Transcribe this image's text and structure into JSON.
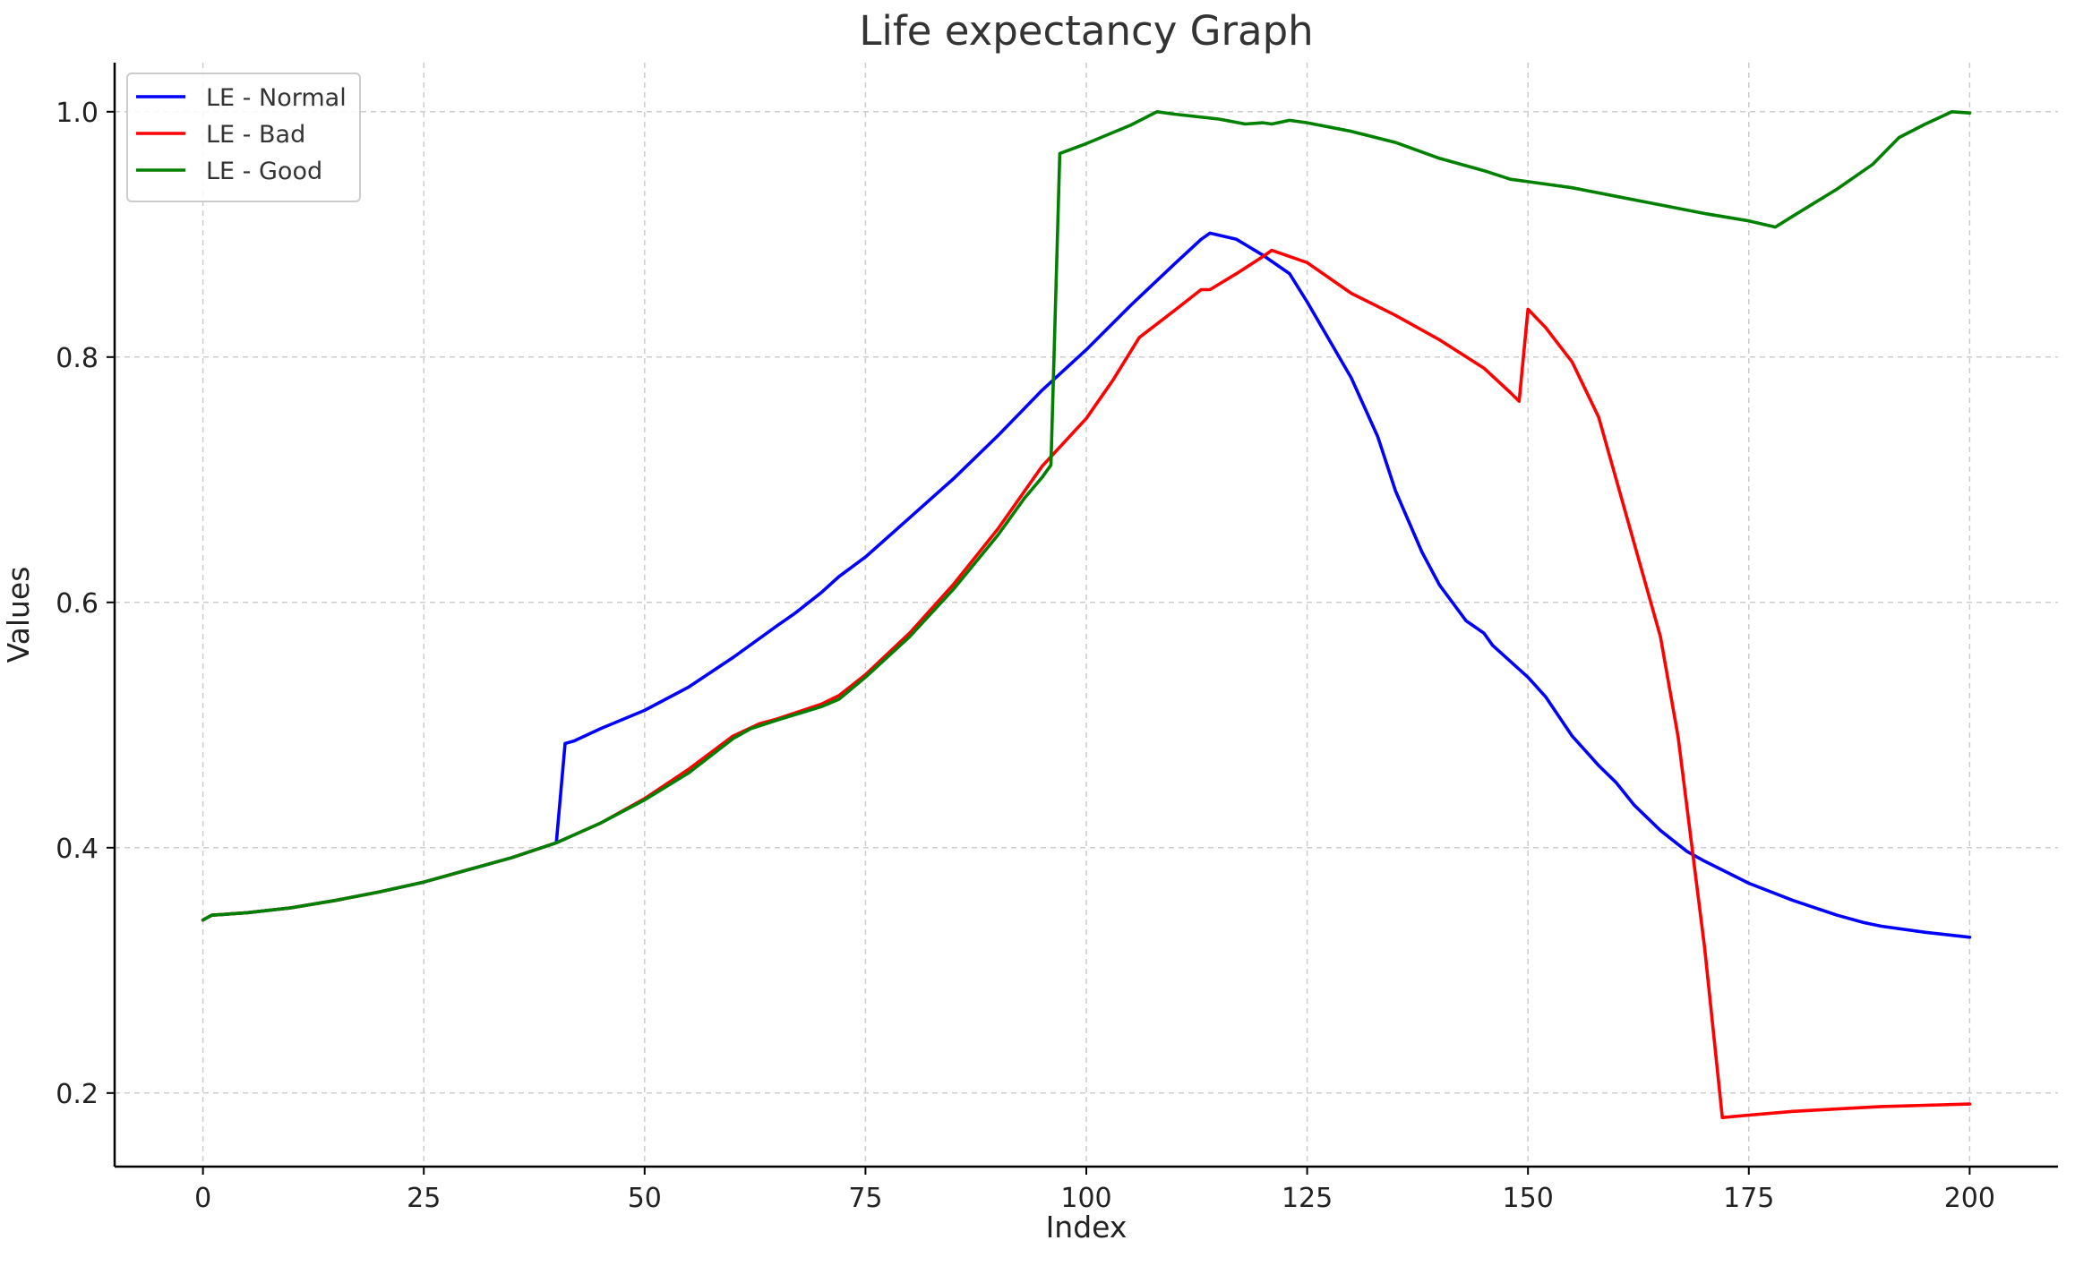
{
  "chart_data": {
    "type": "line",
    "title": "Life expectancy Graph",
    "xlabel": "Index",
    "ylabel": "Values",
    "xlim": [
      -10,
      210
    ],
    "ylim": [
      0.14,
      1.04
    ],
    "xticks": [
      0,
      25,
      50,
      75,
      100,
      125,
      150,
      175,
      200
    ],
    "xtick_labels": [
      "0",
      "25",
      "50",
      "75",
      "100",
      "125",
      "150",
      "175",
      "200"
    ],
    "yticks": [
      0.2,
      0.4,
      0.6,
      0.8,
      1.0
    ],
    "ytick_labels": [
      "0.2",
      "0.4",
      "0.6",
      "0.8",
      "1.0"
    ],
    "grid": true,
    "legend_position": "top-left",
    "series": [
      {
        "name": "LE - Normal",
        "color": "#0000ff",
        "points": [
          [
            0,
            0.341
          ],
          [
            1,
            0.345
          ],
          [
            5,
            0.347
          ],
          [
            10,
            0.351
          ],
          [
            15,
            0.357
          ],
          [
            20,
            0.364
          ],
          [
            25,
            0.372
          ],
          [
            30,
            0.382
          ],
          [
            35,
            0.392
          ],
          [
            40,
            0.404
          ],
          [
            41,
            0.485
          ],
          [
            42,
            0.487
          ],
          [
            45,
            0.497
          ],
          [
            50,
            0.512
          ],
          [
            55,
            0.531
          ],
          [
            60,
            0.555
          ],
          [
            65,
            0.581
          ],
          [
            67,
            0.591
          ],
          [
            70,
            0.608
          ],
          [
            72,
            0.621
          ],
          [
            75,
            0.637
          ],
          [
            80,
            0.669
          ],
          [
            85,
            0.701
          ],
          [
            90,
            0.736
          ],
          [
            95,
            0.773
          ],
          [
            100,
            0.806
          ],
          [
            105,
            0.842
          ],
          [
            110,
            0.876
          ],
          [
            113,
            0.896
          ],
          [
            114,
            0.901
          ],
          [
            117,
            0.896
          ],
          [
            120,
            0.883
          ],
          [
            123,
            0.868
          ],
          [
            125,
            0.845
          ],
          [
            130,
            0.783
          ],
          [
            133,
            0.735
          ],
          [
            135,
            0.691
          ],
          [
            138,
            0.641
          ],
          [
            140,
            0.614
          ],
          [
            143,
            0.585
          ],
          [
            145,
            0.575
          ],
          [
            146,
            0.565
          ],
          [
            150,
            0.539
          ],
          [
            152,
            0.523
          ],
          [
            155,
            0.491
          ],
          [
            158,
            0.467
          ],
          [
            160,
            0.453
          ],
          [
            162,
            0.435
          ],
          [
            165,
            0.414
          ],
          [
            168,
            0.397
          ],
          [
            170,
            0.389
          ],
          [
            175,
            0.371
          ],
          [
            180,
            0.357
          ],
          [
            185,
            0.345
          ],
          [
            188,
            0.339
          ],
          [
            190,
            0.336
          ],
          [
            195,
            0.331
          ],
          [
            200,
            0.327
          ]
        ]
      },
      {
        "name": "LE - Bad",
        "color": "#ff0000",
        "points": [
          [
            0,
            0.341
          ],
          [
            1,
            0.345
          ],
          [
            5,
            0.347
          ],
          [
            10,
            0.351
          ],
          [
            15,
            0.357
          ],
          [
            20,
            0.364
          ],
          [
            25,
            0.372
          ],
          [
            30,
            0.382
          ],
          [
            35,
            0.392
          ],
          [
            40,
            0.404
          ],
          [
            45,
            0.42
          ],
          [
            50,
            0.44
          ],
          [
            55,
            0.464
          ],
          [
            60,
            0.491
          ],
          [
            63,
            0.501
          ],
          [
            65,
            0.505
          ],
          [
            70,
            0.517
          ],
          [
            72,
            0.524
          ],
          [
            75,
            0.541
          ],
          [
            80,
            0.575
          ],
          [
            85,
            0.615
          ],
          [
            90,
            0.66
          ],
          [
            95,
            0.711
          ],
          [
            100,
            0.75
          ],
          [
            103,
            0.781
          ],
          [
            106,
            0.816
          ],
          [
            110,
            0.838
          ],
          [
            113,
            0.855
          ],
          [
            114,
            0.855
          ],
          [
            117,
            0.868
          ],
          [
            120,
            0.882
          ],
          [
            121,
            0.887
          ],
          [
            125,
            0.877
          ],
          [
            130,
            0.852
          ],
          [
            135,
            0.834
          ],
          [
            140,
            0.814
          ],
          [
            145,
            0.791
          ],
          [
            148,
            0.771
          ],
          [
            149,
            0.764
          ],
          [
            150,
            0.839
          ],
          [
            152,
            0.824
          ],
          [
            155,
            0.796
          ],
          [
            158,
            0.751
          ],
          [
            160,
            0.7
          ],
          [
            165,
            0.572
          ],
          [
            167,
            0.49
          ],
          [
            170,
            0.318
          ],
          [
            172,
            0.18
          ],
          [
            175,
            0.182
          ],
          [
            180,
            0.185
          ],
          [
            185,
            0.187
          ],
          [
            190,
            0.189
          ],
          [
            195,
            0.19
          ],
          [
            200,
            0.191
          ]
        ]
      },
      {
        "name": "LE - Good",
        "color": "#008000",
        "points": [
          [
            0,
            0.341
          ],
          [
            1,
            0.345
          ],
          [
            5,
            0.347
          ],
          [
            10,
            0.351
          ],
          [
            15,
            0.357
          ],
          [
            20,
            0.364
          ],
          [
            25,
            0.372
          ],
          [
            30,
            0.382
          ],
          [
            35,
            0.392
          ],
          [
            40,
            0.404
          ],
          [
            45,
            0.42
          ],
          [
            50,
            0.439
          ],
          [
            55,
            0.461
          ],
          [
            60,
            0.489
          ],
          [
            62,
            0.497
          ],
          [
            65,
            0.504
          ],
          [
            70,
            0.515
          ],
          [
            72,
            0.521
          ],
          [
            75,
            0.539
          ],
          [
            80,
            0.572
          ],
          [
            85,
            0.611
          ],
          [
            90,
            0.655
          ],
          [
            93,
            0.685
          ],
          [
            95,
            0.702
          ],
          [
            96,
            0.712
          ],
          [
            97,
            0.966
          ],
          [
            100,
            0.974
          ],
          [
            105,
            0.989
          ],
          [
            108,
            1.0
          ],
          [
            110,
            0.998
          ],
          [
            115,
            0.994
          ],
          [
            118,
            0.99
          ],
          [
            120,
            0.991
          ],
          [
            121,
            0.99
          ],
          [
            123,
            0.993
          ],
          [
            125,
            0.991
          ],
          [
            130,
            0.984
          ],
          [
            135,
            0.975
          ],
          [
            140,
            0.962
          ],
          [
            145,
            0.952
          ],
          [
            148,
            0.945
          ],
          [
            150,
            0.943
          ],
          [
            155,
            0.938
          ],
          [
            160,
            0.931
          ],
          [
            165,
            0.924
          ],
          [
            170,
            0.917
          ],
          [
            175,
            0.911
          ],
          [
            178,
            0.906
          ],
          [
            180,
            0.915
          ],
          [
            185,
            0.937
          ],
          [
            189,
            0.957
          ],
          [
            192,
            0.979
          ],
          [
            195,
            0.99
          ],
          [
            198,
            1.0
          ],
          [
            200,
            0.999
          ]
        ]
      }
    ]
  }
}
